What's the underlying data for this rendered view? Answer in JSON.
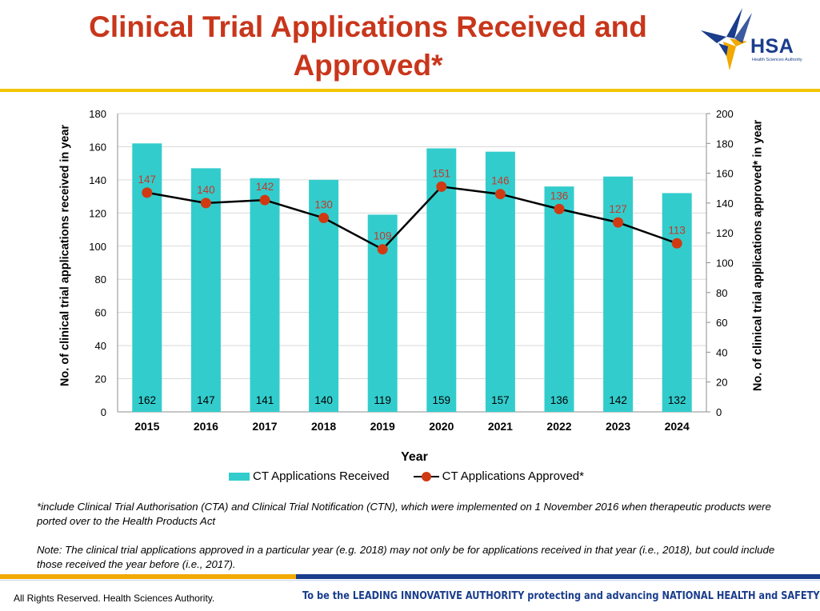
{
  "page": {
    "title": "Clinical Trial Applications Received and Approved*",
    "logo": {
      "text": "HSA",
      "subtext": "Health Sciences Authority"
    },
    "footnote_1": "*include Clinical Trial Authorisation (CTA) and Clinical Trial Notification (CTN), which were implemented on 1 November 2016 when therapeutic products were ported over to the Health Products Act",
    "footnote_2": "Note: The clinical trial applications approved in a particular year (e.g. 2018) may not only be for applications received in that year (i.e., 2018), but could include those received the year before (i.e., 2017).",
    "copyright": "All Rights Reserved. Health Sciences Authority.",
    "tagline": "To be the LEADING INNOVATIVE AUTHORITY protecting and advancing NATIONAL HEALTH and SAFETY",
    "colors": {
      "title": "#c8361b",
      "accent_yellow": "#f2c500",
      "brand_blue": "#1a3d8c",
      "orange": "#f2a900"
    }
  },
  "chart_data": {
    "type": "bar",
    "xlabel": "Year",
    "ylabel": "No. of clinical trial applications received in year",
    "y2label": "No. of clinical trial applications approved* in year",
    "categories": [
      "2015",
      "2016",
      "2017",
      "2018",
      "2019",
      "2020",
      "2021",
      "2022",
      "2023",
      "2024"
    ],
    "ylim": [
      0,
      180
    ],
    "yticks": [
      0,
      20,
      40,
      60,
      80,
      100,
      120,
      140,
      160,
      180
    ],
    "y2lim": [
      0,
      200
    ],
    "y2ticks": [
      0,
      20,
      40,
      60,
      80,
      100,
      120,
      140,
      160,
      180,
      200
    ],
    "grid": true,
    "legend_position": "bottom",
    "series": [
      {
        "name": "CT Applications Received",
        "type": "bar",
        "axis": "left",
        "color": "#33cccc",
        "values": [
          162,
          147,
          141,
          140,
          119,
          159,
          157,
          136,
          142,
          132
        ]
      },
      {
        "name": "CT Applications Approved*",
        "type": "line",
        "axis": "right",
        "color": "#d03a12",
        "line_color": "#000000",
        "values": [
          147,
          140,
          142,
          130,
          109,
          151,
          146,
          136,
          127,
          113
        ]
      }
    ]
  }
}
